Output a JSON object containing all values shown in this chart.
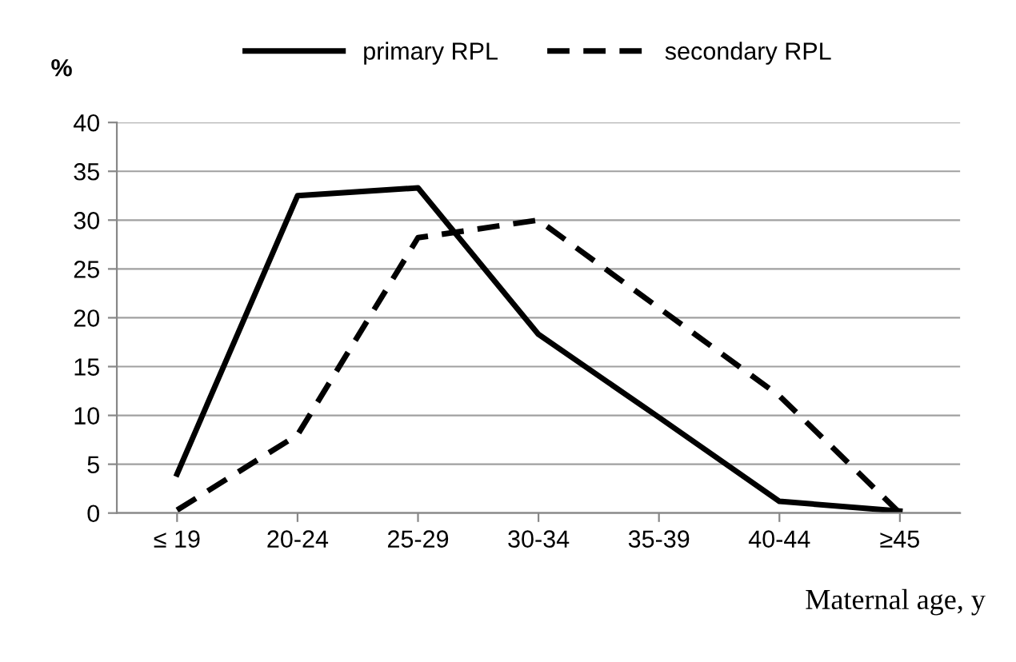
{
  "chart_data": {
    "type": "line",
    "ylabel": "%",
    "xlabel": "Maternal age, y",
    "categories": [
      "≤ 19",
      "20-24",
      "25-29",
      "30-34",
      "35-39",
      "40-44",
      "≥45"
    ],
    "series": [
      {
        "name": "primary RPL",
        "color": "#000000",
        "line_style": "solid",
        "values": [
          4,
          32.5,
          33.3,
          18.3,
          9.8,
          1.2,
          0.2
        ]
      },
      {
        "name": "secondary RPL",
        "color": "#000000",
        "line_style": "dashed",
        "values": [
          0.3,
          8,
          28.2,
          30,
          21,
          12,
          0
        ]
      }
    ],
    "ylim": [
      0,
      40
    ],
    "yticks": [
      0,
      5,
      10,
      15,
      20,
      25,
      30,
      35,
      40
    ],
    "grid": "y",
    "legend": "top",
    "marker": "none"
  }
}
